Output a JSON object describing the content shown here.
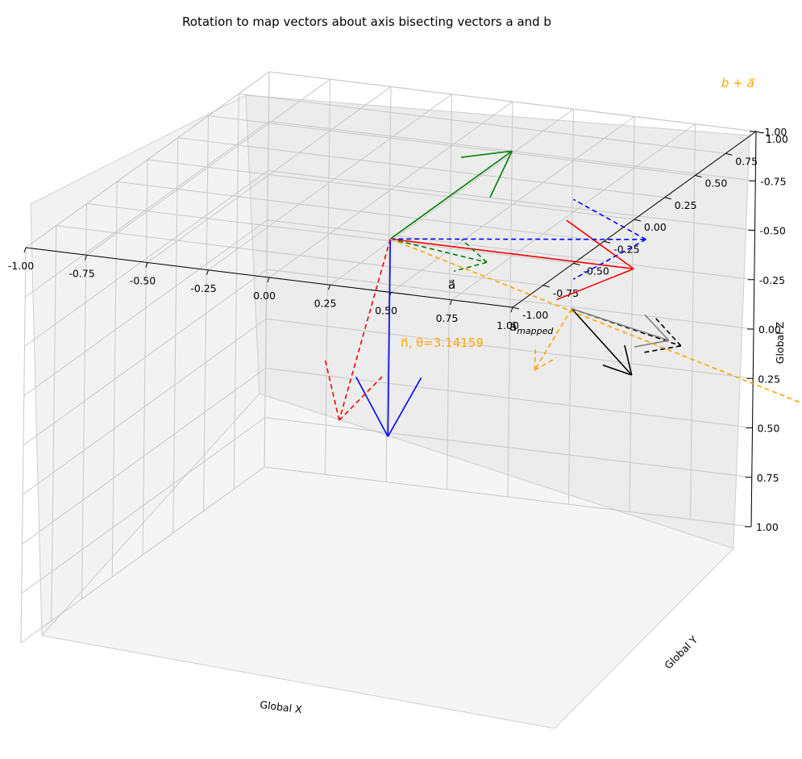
{
  "title": "Rotation to map vectors about axis bisecting vectors a and b",
  "chart_data": {
    "type": "3d-quiver",
    "title": "Rotation to map vectors about axis bisecting vectors a and b",
    "xlabel": "Global X",
    "ylabel": "Global Y",
    "zlabel": "Global Z",
    "xlim": [
      -1,
      1
    ],
    "ylim": [
      -1,
      1
    ],
    "zlim": [
      -1,
      1
    ],
    "grid": true,
    "x_ticks": [
      "-1.00",
      "-0.75",
      "-0.50",
      "-0.25",
      "0.00",
      "0.25",
      "0.50",
      "0.75",
      "1.00"
    ],
    "y_ticks": [
      "-1.00",
      "-0.75",
      "-0.50",
      "-0.25",
      "0.00",
      "0.25",
      "0.50",
      "0.75",
      "1.00"
    ],
    "z_ticks": [
      "-1.00",
      "-0.75",
      "-0.50",
      "-0.25",
      "0.00",
      "0.25",
      "0.50",
      "0.75",
      "1.00"
    ],
    "vectors": [
      {
        "id": "x-axis",
        "color": "#ff0000",
        "dashed": false,
        "from": [
          0,
          0,
          -0.75
        ],
        "to": [
          1,
          0,
          -0.75
        ]
      },
      {
        "id": "y-axis",
        "color": "#008000",
        "dashed": false,
        "from": [
          0,
          0,
          -0.75
        ],
        "to": [
          0,
          1,
          -0.75
        ]
      },
      {
        "id": "z-axis",
        "color": "#0000ff",
        "dashed": false,
        "from": [
          0,
          0,
          -0.75
        ],
        "to": [
          0,
          0,
          0.25
        ]
      },
      {
        "id": "x-mapped",
        "color": "#ff0000",
        "dashed": true,
        "from": [
          0,
          0,
          -0.75
        ],
        "to": [
          -0.25,
          0.1,
          0.25
        ]
      },
      {
        "id": "y-mapped",
        "color": "#008000",
        "dashed": true,
        "from": [
          0,
          0,
          -0.75
        ],
        "to": [
          0.1,
          0.6,
          -0.38
        ]
      },
      {
        "id": "z-mapped",
        "color": "#0000ff",
        "dashed": true,
        "from": [
          0,
          0,
          -0.75
        ],
        "to": [
          0.9,
          0.3,
          -0.75
        ]
      },
      {
        "id": "a",
        "color": "#000000",
        "dashed": false,
        "from": [
          0.5,
          0.5,
          -0.25
        ],
        "to": [
          0.7,
          0.6,
          0.1
        ]
      },
      {
        "id": "a-mapped",
        "color": "#000000",
        "dashed": true,
        "from": [
          0.5,
          0.5,
          -0.25
        ],
        "to": [
          0.95,
          0.5,
          -0.13
        ]
      },
      {
        "id": "b",
        "color": "#808080",
        "dashed": false,
        "from": [
          0.5,
          0.5,
          -0.25
        ],
        "to": [
          0.9,
          0.5,
          -0.15
        ]
      },
      {
        "id": "n",
        "color": "#ffa500",
        "dashed": true,
        "from": [
          0.5,
          0.5,
          -0.25
        ],
        "to": [
          0.45,
          0.3,
          -0.02
        ]
      },
      {
        "id": "b+a",
        "color": "#ffa500",
        "dashed": true,
        "from": [
          0,
          0,
          -0.75
        ],
        "to": [
          1.5,
          1.4,
          0.72
        ]
      }
    ],
    "labels": [
      {
        "text": "$\\vec{a}$",
        "color": "#000000"
      },
      {
        "text": "$\\vec{a}_{mapped}$",
        "color": "#000000"
      },
      {
        "text": "$\\vec{n}$, θ=3.14159",
        "color": "#ffa500"
      },
      {
        "text": "$b\\vec{+}a$",
        "color": "#ffa500"
      }
    ]
  }
}
